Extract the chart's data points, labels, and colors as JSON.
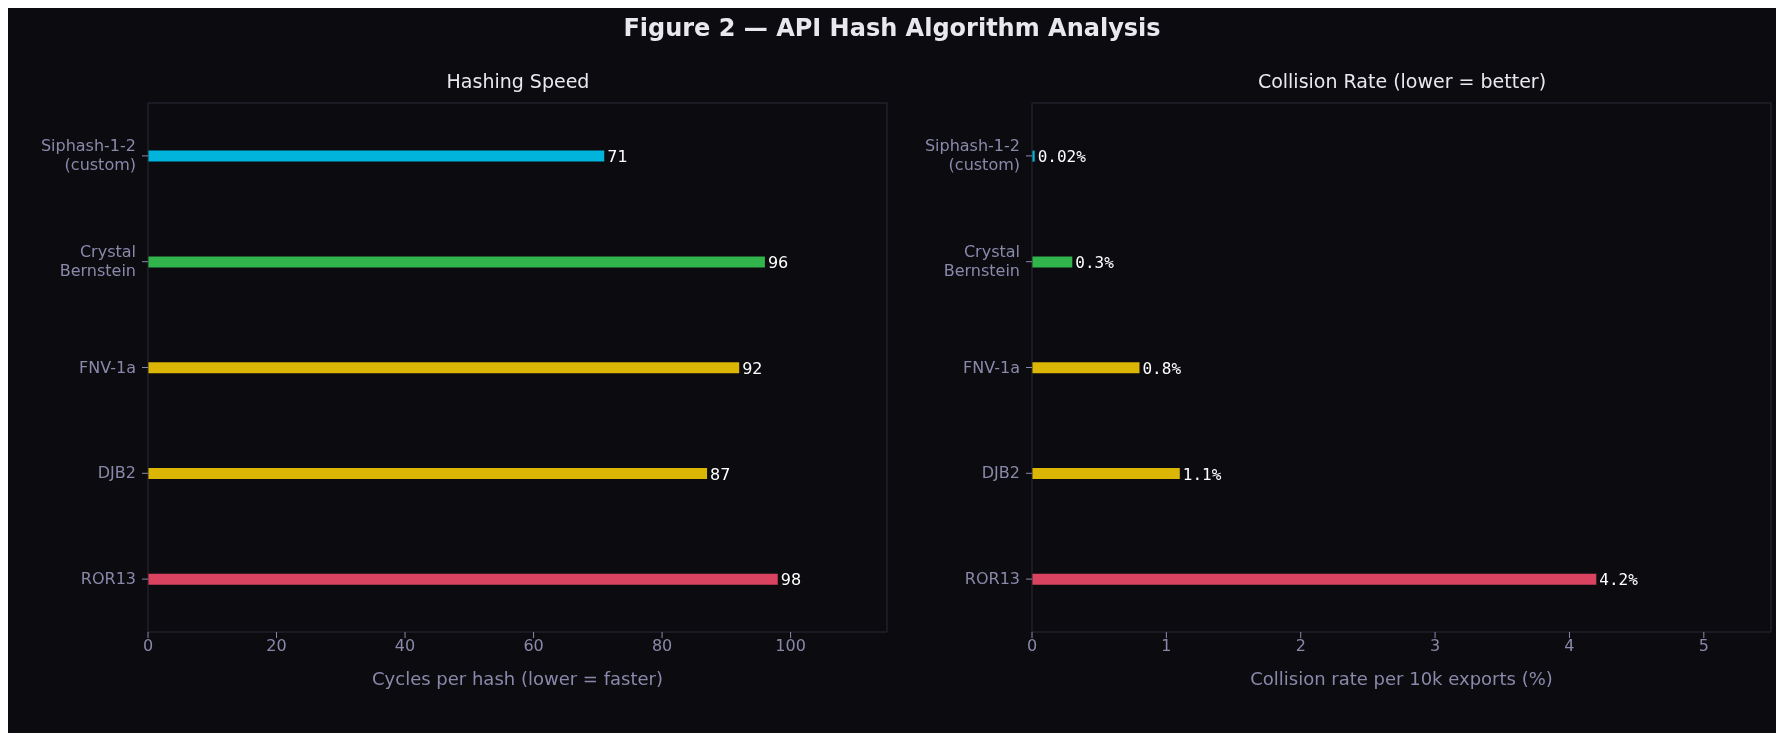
{
  "chart_data": [
    {
      "type": "other",
      "title": "Figure 2 — API Hash Algorithm Analysis"
    },
    {
      "type": "bar",
      "orientation": "horizontal",
      "title": "Hashing Speed",
      "xlabel": "Cycles per hash (lower = faster)",
      "categories": [
        "Siphash-1-2\n(custom)",
        "Crystal\nBernstein",
        "FNV-1a",
        "DJB2",
        "ROR13"
      ],
      "values": [
        71,
        96,
        92,
        87,
        98
      ],
      "colors": [
        "#00b4db",
        "#32b44c",
        "#dbb604",
        "#dbb604",
        "#d9435f"
      ],
      "xlim": [
        0,
        115
      ],
      "xticks": [
        0,
        20,
        40,
        60,
        80,
        100
      ],
      "data_labels": true
    },
    {
      "type": "bar",
      "orientation": "horizontal",
      "title": "Collision Rate (lower = better)",
      "xlabel": "Collision rate per 10k exports (%)",
      "categories": [
        "Siphash-1-2\n(custom)",
        "Crystal\nBernstein",
        "FNV-1a",
        "DJB2",
        "ROR13"
      ],
      "values": [
        0.02,
        0.3,
        0.8,
        1.1,
        4.2
      ],
      "value_labels": [
        "0.02%",
        "0.3%",
        "0.8%",
        "1.1%",
        "4.2%"
      ],
      "colors": [
        "#00b4db",
        "#32b44c",
        "#dbb604",
        "#dbb604",
        "#d9435f"
      ],
      "xlim": [
        0,
        5.5
      ],
      "xticks": [
        0,
        1,
        2,
        3,
        4,
        5
      ]
    }
  ]
}
